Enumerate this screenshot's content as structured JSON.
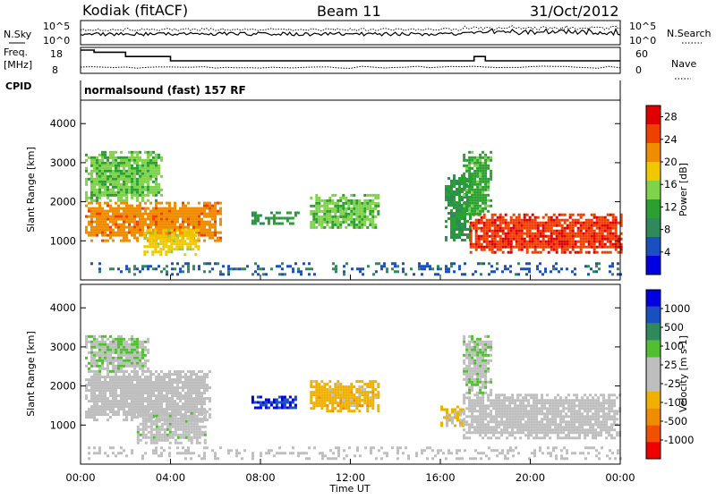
{
  "header": {
    "station": "Kodiak (fitACF)",
    "beam": "Beam 11",
    "date": "31/Oct/2012"
  },
  "panel_labels": {
    "nsky": "N.Sky",
    "nsearch": "N.Search",
    "freq_line1": "Freq.",
    "freq_line2": "[MHz]",
    "nave": "Nave",
    "cpid": "CPID",
    "mode": "normalsound (fast) 157 RF"
  },
  "noise_ticks": [
    "10^5",
    "10^0"
  ],
  "freq_ticks": [
    "18",
    "8"
  ],
  "nave_ticks": [
    "60",
    "0"
  ],
  "colors": {
    "power": [
      "#0000e0",
      "#1a4fc0",
      "#2e8a5a",
      "#2aa030",
      "#7fd24a",
      "#f0c800",
      "#f08c00",
      "#f04000",
      "#e00000"
    ],
    "velocity": [
      "#f00000",
      "#f05000",
      "#f08c00",
      "#f0b000",
      "#bebebe",
      "#bebebe",
      "#50c030",
      "#2e8a5a",
      "#1a4fc0",
      "#0000e0"
    ],
    "ground": "#bebebe"
  },
  "chart_data": [
    {
      "type": "heatmap",
      "name": "power",
      "ylabel": "Slant Range [km]",
      "ylim": [
        0,
        4600
      ],
      "yticks": [
        1000,
        2000,
        3000,
        4000
      ],
      "x_unit": "hours UT",
      "xlim": [
        0,
        24
      ],
      "colorbar": {
        "label": "Power [dB]",
        "ticks": [
          4,
          8,
          12,
          16,
          20,
          24,
          28
        ],
        "range": [
          0,
          30
        ]
      },
      "regions": [
        {
          "t0": 0.2,
          "t1": 6.2,
          "r0": 1000,
          "r1": 2000,
          "level": 22
        },
        {
          "t0": 0.2,
          "t1": 3.6,
          "r0": 2000,
          "r1": 3300,
          "level": 14
        },
        {
          "t0": 2.8,
          "t1": 5.3,
          "r0": 650,
          "r1": 1300,
          "level": 18
        },
        {
          "t0": 7.6,
          "t1": 9.7,
          "r0": 1450,
          "r1": 1750,
          "level": 10
        },
        {
          "t0": 10.2,
          "t1": 13.3,
          "r0": 1350,
          "r1": 2200,
          "level": 14
        },
        {
          "t0": 16.2,
          "t1": 17.3,
          "r0": 1000,
          "r1": 2700,
          "level": 10
        },
        {
          "t0": 17.3,
          "t1": 24.0,
          "r0": 700,
          "r1": 1700,
          "level": 26
        },
        {
          "t0": 17.0,
          "t1": 18.3,
          "r0": 1700,
          "r1": 3300,
          "level": 12
        },
        {
          "t0": 0.2,
          "t1": 24.0,
          "r0": 150,
          "r1": 450,
          "level": 6
        }
      ]
    },
    {
      "type": "heatmap",
      "name": "velocity",
      "ylabel": "Slant Range [km]",
      "ylim": [
        0,
        4600
      ],
      "yticks": [
        1000,
        2000,
        3000,
        4000
      ],
      "x_unit": "hours UT",
      "xlim": [
        0,
        24
      ],
      "colorbar": {
        "label": "Velocity [m s-1]",
        "ticks": [
          1000,
          500,
          100,
          25,
          -25,
          -100,
          -500,
          -1000
        ],
        "range": [
          -1000,
          1000
        ]
      },
      "regions": [
        {
          "t0": 0.2,
          "t1": 5.8,
          "r0": 1100,
          "r1": 2400,
          "level": 0
        },
        {
          "t0": 2.5,
          "t1": 5.5,
          "r0": 550,
          "r1": 1400,
          "level": 100
        },
        {
          "t0": 0.2,
          "t1": 3.0,
          "r0": 2400,
          "r1": 3300,
          "level": 150
        },
        {
          "t0": 7.6,
          "t1": 9.7,
          "r0": 1450,
          "r1": 1750,
          "level": 800
        },
        {
          "t0": 10.2,
          "t1": 13.3,
          "r0": 1350,
          "r1": 2150,
          "level": -300
        },
        {
          "t0": 16.0,
          "t1": 17.0,
          "r0": 1000,
          "r1": 1500,
          "level": -250
        },
        {
          "t0": 17.0,
          "t1": 24.0,
          "r0": 650,
          "r1": 1800,
          "level": 0
        },
        {
          "t0": 17.0,
          "t1": 18.3,
          "r0": 1800,
          "r1": 3300,
          "level": 150
        },
        {
          "t0": 0.2,
          "t1": 24.0,
          "r0": 150,
          "r1": 450,
          "level": 0
        }
      ]
    }
  ],
  "xaxis": {
    "ticks": [
      "00:00",
      "04:00",
      "08:00",
      "12:00",
      "16:00",
      "20:00",
      "00:00"
    ],
    "label": "Time UT"
  }
}
